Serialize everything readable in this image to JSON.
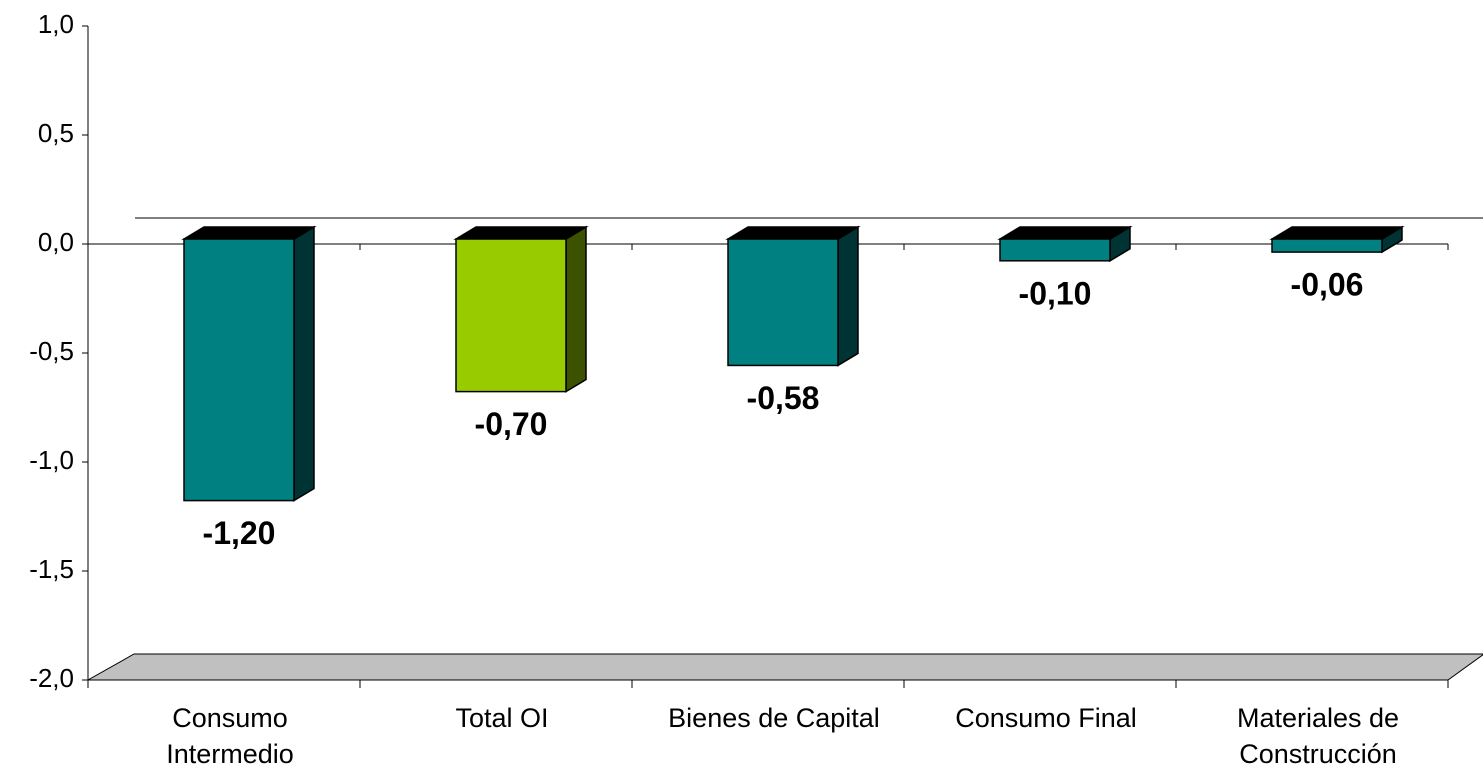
{
  "chart_data": {
    "type": "bar3d",
    "categories": [
      "Consumo Intermedio",
      "Total OI",
      "Bienes de Capital",
      "Consumo Final",
      "Materiales de Construcción"
    ],
    "values": [
      -1.2,
      -0.7,
      -0.58,
      -0.1,
      -0.06
    ],
    "value_labels": [
      "-1,20",
      "-0,70",
      "-0,58",
      "-0,10",
      "-0,06"
    ],
    "colors": [
      "#008080",
      "#99cc00",
      "#008080",
      "#008080",
      "#008080"
    ],
    "ylim": [
      -2.0,
      1.0
    ],
    "yticks": [
      {
        "value": -2.0,
        "label": "-2,0"
      },
      {
        "value": -1.5,
        "label": "-1,5"
      },
      {
        "value": -1.0,
        "label": "-1,0"
      },
      {
        "value": -0.5,
        "label": "-0,5"
      },
      {
        "value": 0.0,
        "label": "0,0"
      },
      {
        "value": 0.5,
        "label": "0,5"
      },
      {
        "value": 1.0,
        "label": "1,0"
      }
    ]
  }
}
